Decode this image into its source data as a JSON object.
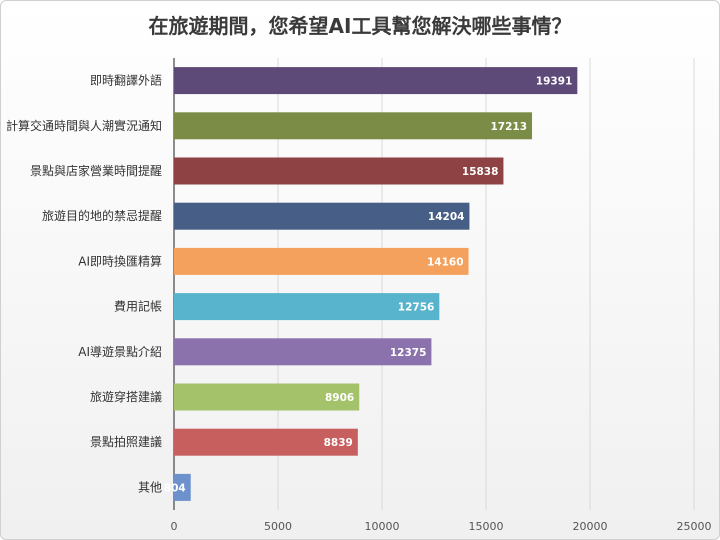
{
  "chart_data": {
    "type": "bar",
    "orientation": "horizontal",
    "title": "在旅遊期間，您希望AI工具幫您解決哪些事情？",
    "categories": [
      "即時翻譯外語",
      "計算交通時間與人潮實況通知",
      "景點與店家營業時間提醒",
      "旅遊目的地的禁忌提醒",
      "AI即時換匯精算",
      "費用記帳",
      "AI導遊景點介紹",
      "旅遊穿搭建議",
      "景點拍照建議",
      "其他"
    ],
    "values": [
      19391,
      17213,
      15838,
      14204,
      14160,
      12756,
      12375,
      8906,
      8839,
      804
    ],
    "colors": [
      "#5d4a78",
      "#7a8c45",
      "#8e4244",
      "#475f86",
      "#f3a15c",
      "#58b3cc",
      "#8c72ac",
      "#a4c26a",
      "#c85f5f",
      "#6d91cc"
    ],
    "xlim": [
      0,
      25000
    ],
    "xticks": [
      0,
      5000,
      10000,
      15000,
      20000,
      25000
    ],
    "grid": true,
    "legend": "none"
  }
}
